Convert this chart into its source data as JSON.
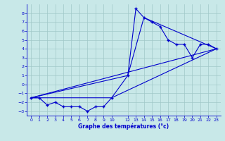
{
  "xlabel": "Graphe des températures (°c)",
  "background_color": "#c8e8e8",
  "grid_color": "#a0c8c8",
  "line_color": "#0000cc",
  "xlim": [
    -0.5,
    23.5
  ],
  "ylim": [
    -3.5,
    9.0
  ],
  "xticks": [
    0,
    1,
    2,
    3,
    4,
    5,
    6,
    7,
    8,
    9,
    10,
    12,
    13,
    14,
    15,
    16,
    17,
    18,
    19,
    20,
    21,
    22,
    23
  ],
  "yticks": [
    -3,
    -2,
    -1,
    0,
    1,
    2,
    3,
    4,
    5,
    6,
    7,
    8
  ],
  "main_x": [
    0,
    1,
    2,
    3,
    4,
    5,
    6,
    7,
    8,
    9,
    10,
    12,
    13,
    14,
    15,
    16,
    17,
    18,
    19,
    20,
    21,
    22,
    23
  ],
  "main_y": [
    -1.5,
    -1.5,
    -2.3,
    -2.0,
    -2.5,
    -2.5,
    -2.5,
    -3.0,
    -2.5,
    -2.5,
    -1.5,
    1.0,
    8.5,
    7.5,
    7.0,
    6.5,
    5.0,
    4.5,
    4.5,
    3.0,
    4.5,
    4.5,
    4.0
  ],
  "trend1_x": [
    0,
    23
  ],
  "trend1_y": [
    -1.5,
    4.0
  ],
  "trend2_x": [
    0,
    12,
    14,
    23
  ],
  "trend2_y": [
    -1.5,
    1.0,
    7.5,
    4.0
  ],
  "trend3_x": [
    0,
    10,
    23
  ],
  "trend3_y": [
    -1.5,
    -1.5,
    4.0
  ],
  "marker_style": "+"
}
